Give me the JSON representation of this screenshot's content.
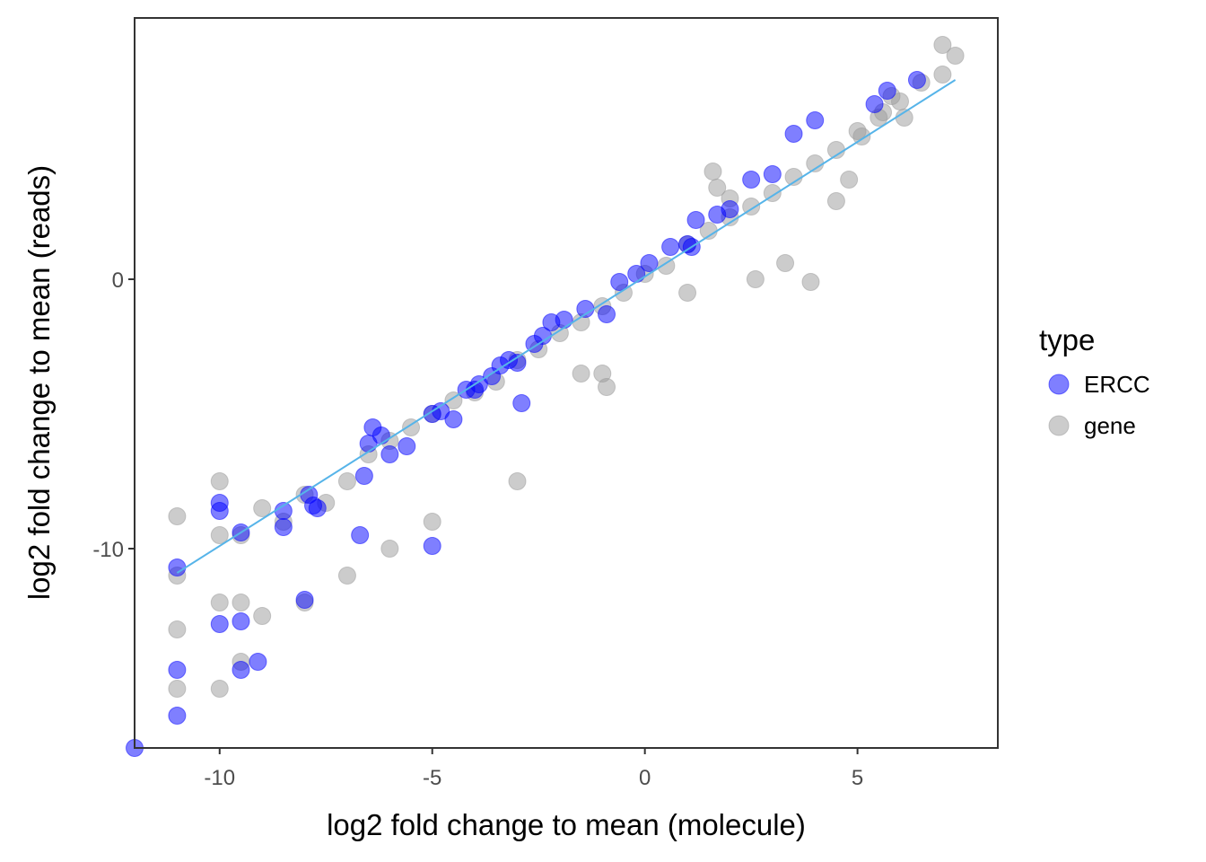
{
  "chart_data": {
    "type": "scatter",
    "title": "",
    "xlabel": "log2 fold change to mean (molecule)",
    "ylabel": "log2 fold change to mean (reads)",
    "xlim": [
      -12,
      8.3
    ],
    "ylim": [
      -17.4,
      9.7
    ],
    "x_ticks": [
      -10,
      -5,
      0,
      5
    ],
    "x_tick_labels": [
      "-10",
      "-5",
      "0",
      "5"
    ],
    "y_ticks": [
      -10,
      0
    ],
    "y_tick_labels": [
      "-10",
      "0"
    ],
    "grid": false,
    "legend": {
      "title": "type",
      "position": "right",
      "entries": [
        {
          "label": "ERCC",
          "color": "#0000ff"
        },
        {
          "label": "gene",
          "color": "#999999"
        }
      ]
    },
    "fit_line": {
      "x": [
        -11,
        7.3
      ],
      "y": [
        -10.9,
        7.4
      ],
      "color": "#56b4e9"
    },
    "series": [
      {
        "name": "ERCC",
        "color": "#0000ff",
        "opacity": 0.5,
        "x": [
          -12,
          -11,
          -11,
          -11,
          -10,
          -10,
          -10,
          -9.5,
          -9.5,
          -9.5,
          -9.1,
          -8.5,
          -8.5,
          -8.0,
          -7.9,
          -7.8,
          -7.7,
          -6.7,
          -6.6,
          -6.5,
          -6.4,
          -6.2,
          -6.0,
          -5.6,
          -5.0,
          -5.0,
          -4.8,
          -4.5,
          -4.2,
          -4.0,
          -3.9,
          -3.6,
          -3.4,
          -3.2,
          -3.0,
          -2.9,
          -2.6,
          -2.4,
          -2.2,
          -1.9,
          -1.4,
          -0.9,
          -0.6,
          -0.2,
          0.1,
          0.6,
          1.0,
          1.1,
          1.2,
          1.7,
          2.0,
          2.5,
          3.0,
          3.5,
          4.0,
          5.4,
          5.7,
          6.4
        ],
        "y": [
          -17.4,
          -16.2,
          -14.5,
          -10.7,
          -12.8,
          -8.6,
          -8.3,
          -14.5,
          -12.7,
          -9.4,
          -14.2,
          -9.2,
          -8.6,
          -11.9,
          -8.0,
          -8.4,
          -8.5,
          -9.5,
          -7.3,
          -6.1,
          -5.5,
          -5.8,
          -6.5,
          -6.2,
          -5.0,
          -9.9,
          -4.9,
          -5.2,
          -4.1,
          -4.1,
          -3.9,
          -3.6,
          -3.2,
          -3.0,
          -3.1,
          -4.6,
          -2.4,
          -2.1,
          -1.6,
          -1.5,
          -1.1,
          -1.3,
          -0.1,
          0.2,
          0.6,
          1.2,
          1.3,
          1.2,
          2.2,
          2.4,
          2.6,
          3.7,
          3.9,
          5.4,
          5.9,
          6.5,
          7.0,
          7.4
        ]
      },
      {
        "name": "gene",
        "color": "#999999",
        "opacity": 0.5,
        "x": [
          -11,
          -11,
          -11,
          -11,
          -10,
          -10,
          -10,
          -10,
          -9.5,
          -9.5,
          -9.5,
          -9.0,
          -9.0,
          -8.5,
          -8.0,
          -8.0,
          -7.5,
          -7.0,
          -7.0,
          -6.5,
          -6.0,
          -6.0,
          -5.5,
          -5.0,
          -5.0,
          -4.5,
          -4.0,
          -3.5,
          -3.0,
          -3.0,
          -2.5,
          -2.0,
          -1.5,
          -1.0,
          -1.0,
          -0.5,
          0.0,
          0.5,
          1.0,
          1.0,
          1.5,
          2.0,
          2.5,
          3.0,
          3.5,
          4.0,
          4.5,
          5.0,
          5.5,
          6.0,
          6.5,
          7.0,
          7.3,
          7.0,
          2.6,
          3.3,
          3.9,
          1.7,
          -1.5,
          -0.9,
          1.6,
          2.0,
          4.5,
          4.8,
          5.1,
          5.6,
          6.1,
          5.8
        ],
        "y": [
          -8.8,
          -11.0,
          -13.0,
          -15.2,
          -7.5,
          -9.5,
          -12.0,
          -15.2,
          -9.5,
          -12.0,
          -14.2,
          -8.5,
          -12.5,
          -9.0,
          -8.0,
          -12.0,
          -8.3,
          -7.5,
          -11.0,
          -6.5,
          -6.0,
          -10.0,
          -5.5,
          -5.0,
          -9.0,
          -4.5,
          -4.2,
          -3.8,
          -3.0,
          -7.5,
          -2.6,
          -2.0,
          -1.6,
          -1.0,
          -3.5,
          -0.5,
          0.2,
          0.5,
          1.3,
          -0.5,
          1.8,
          2.3,
          2.7,
          3.2,
          3.8,
          4.3,
          4.8,
          5.5,
          6.0,
          6.6,
          7.3,
          7.6,
          8.3,
          8.7,
          0.0,
          0.6,
          -0.1,
          3.4,
          -3.5,
          -4.0,
          4.0,
          3.0,
          2.9,
          3.7,
          5.3,
          6.2,
          6.0,
          6.8
        ]
      }
    ]
  }
}
